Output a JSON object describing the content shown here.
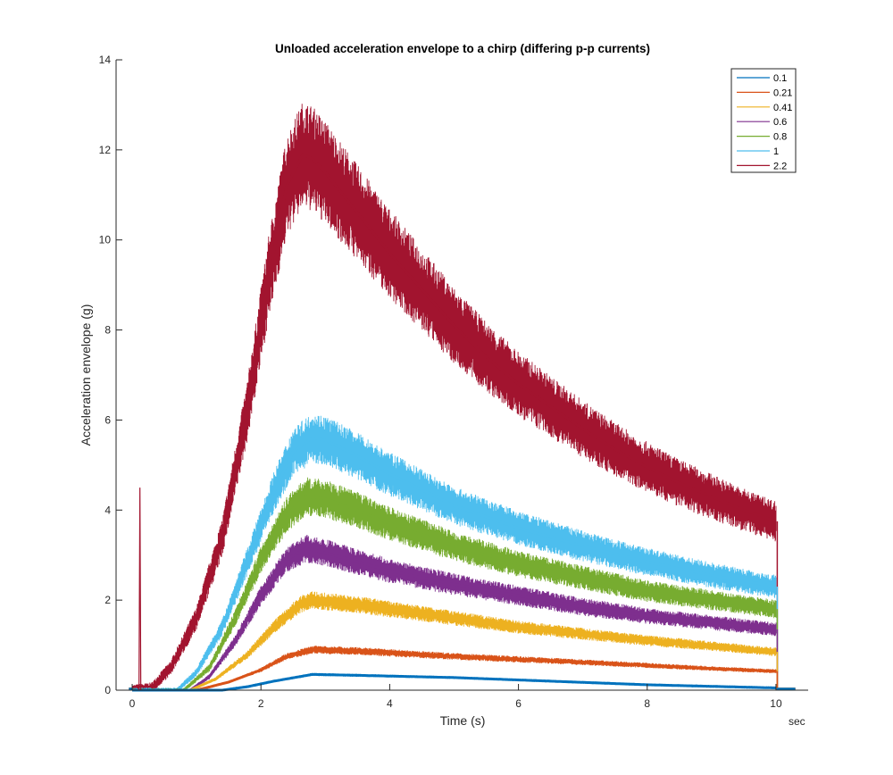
{
  "chart_data": {
    "type": "line",
    "title": "Unloaded acceleration envelope to a chirp (differing p-p currents)",
    "xlabel": "Time (s)",
    "ylabel": "Acceleration envelope (g)",
    "x_unit_label": "sec",
    "xlim": [
      -0.25,
      10.5
    ],
    "ylim": [
      0,
      14
    ],
    "xticks": [
      0,
      2,
      4,
      6,
      8,
      10
    ],
    "yticks": [
      0,
      2,
      4,
      6,
      8,
      10,
      12,
      14
    ],
    "grid": false,
    "legend_position": "top-right",
    "series": [
      {
        "name": "0.1",
        "color": "#0072BD",
        "x": [
          0,
          1.4,
          1.8,
          2.2,
          2.6,
          2.8,
          3.5,
          5,
          6.5,
          8,
          10
        ],
        "y": [
          0,
          0,
          0.08,
          0.2,
          0.3,
          0.35,
          0.33,
          0.28,
          0.2,
          0.12,
          0.05
        ]
      },
      {
        "name": "0.21",
        "color": "#D95319",
        "x": [
          0,
          1.0,
          1.5,
          2.0,
          2.4,
          2.8,
          3.5,
          5,
          7,
          9,
          10
        ],
        "y": [
          0,
          0,
          0.18,
          0.45,
          0.75,
          0.9,
          0.87,
          0.75,
          0.62,
          0.48,
          0.42
        ]
      },
      {
        "name": "0.41",
        "color": "#EDB120",
        "x": [
          0,
          0.9,
          1.3,
          1.8,
          2.2,
          2.6,
          2.8,
          3.5,
          5,
          6,
          7,
          8,
          9,
          10
        ],
        "y": [
          0,
          0,
          0.25,
          0.8,
          1.4,
          1.9,
          2.0,
          1.9,
          1.6,
          1.4,
          1.25,
          1.1,
          0.98,
          0.85
        ]
      },
      {
        "name": "0.6",
        "color": "#7E2F8E",
        "x": [
          0,
          0.9,
          1.2,
          1.6,
          2.0,
          2.4,
          2.7,
          3.0,
          3.5,
          4,
          5,
          6,
          7,
          8,
          9,
          10
        ],
        "y": [
          0,
          0,
          0.3,
          1.1,
          2.1,
          2.9,
          3.15,
          3.05,
          2.85,
          2.65,
          2.35,
          2.1,
          1.85,
          1.65,
          1.5,
          1.35
        ]
      },
      {
        "name": "0.8",
        "color": "#77AC30",
        "x": [
          0,
          0.8,
          1.2,
          1.6,
          2.0,
          2.4,
          2.7,
          3.0,
          3.5,
          4,
          5,
          6,
          7,
          8,
          9,
          10
        ],
        "y": [
          0,
          0,
          0.5,
          1.6,
          2.9,
          3.9,
          4.3,
          4.25,
          4.0,
          3.7,
          3.2,
          2.8,
          2.5,
          2.2,
          2.0,
          1.8
        ]
      },
      {
        "name": "1",
        "color": "#4DBEEE",
        "x": [
          0,
          0.7,
          1.0,
          1.4,
          1.8,
          2.2,
          2.5,
          2.8,
          3.0,
          3.5,
          4,
          5,
          6,
          7,
          8,
          9,
          10
        ],
        "y": [
          0,
          0,
          0.4,
          1.4,
          2.9,
          4.4,
          5.3,
          5.6,
          5.55,
          5.2,
          4.8,
          4.1,
          3.6,
          3.2,
          2.85,
          2.55,
          2.3
        ]
      },
      {
        "name": "2.2",
        "color": "#A2142F",
        "x": [
          0,
          0.3,
          0.6,
          1.0,
          1.4,
          1.8,
          2.1,
          2.4,
          2.65,
          2.8,
          3.0,
          3.5,
          4,
          4.5,
          5,
          5.5,
          6,
          6.5,
          7,
          7.5,
          8,
          8.5,
          9,
          9.5,
          10
        ],
        "y": [
          0,
          0.05,
          0.5,
          1.6,
          3.4,
          6.3,
          9.0,
          11.2,
          11.9,
          11.8,
          11.5,
          10.6,
          9.7,
          8.9,
          8.1,
          7.4,
          6.8,
          6.3,
          5.8,
          5.35,
          4.95,
          4.6,
          4.3,
          4.0,
          3.75
        ]
      }
    ]
  }
}
